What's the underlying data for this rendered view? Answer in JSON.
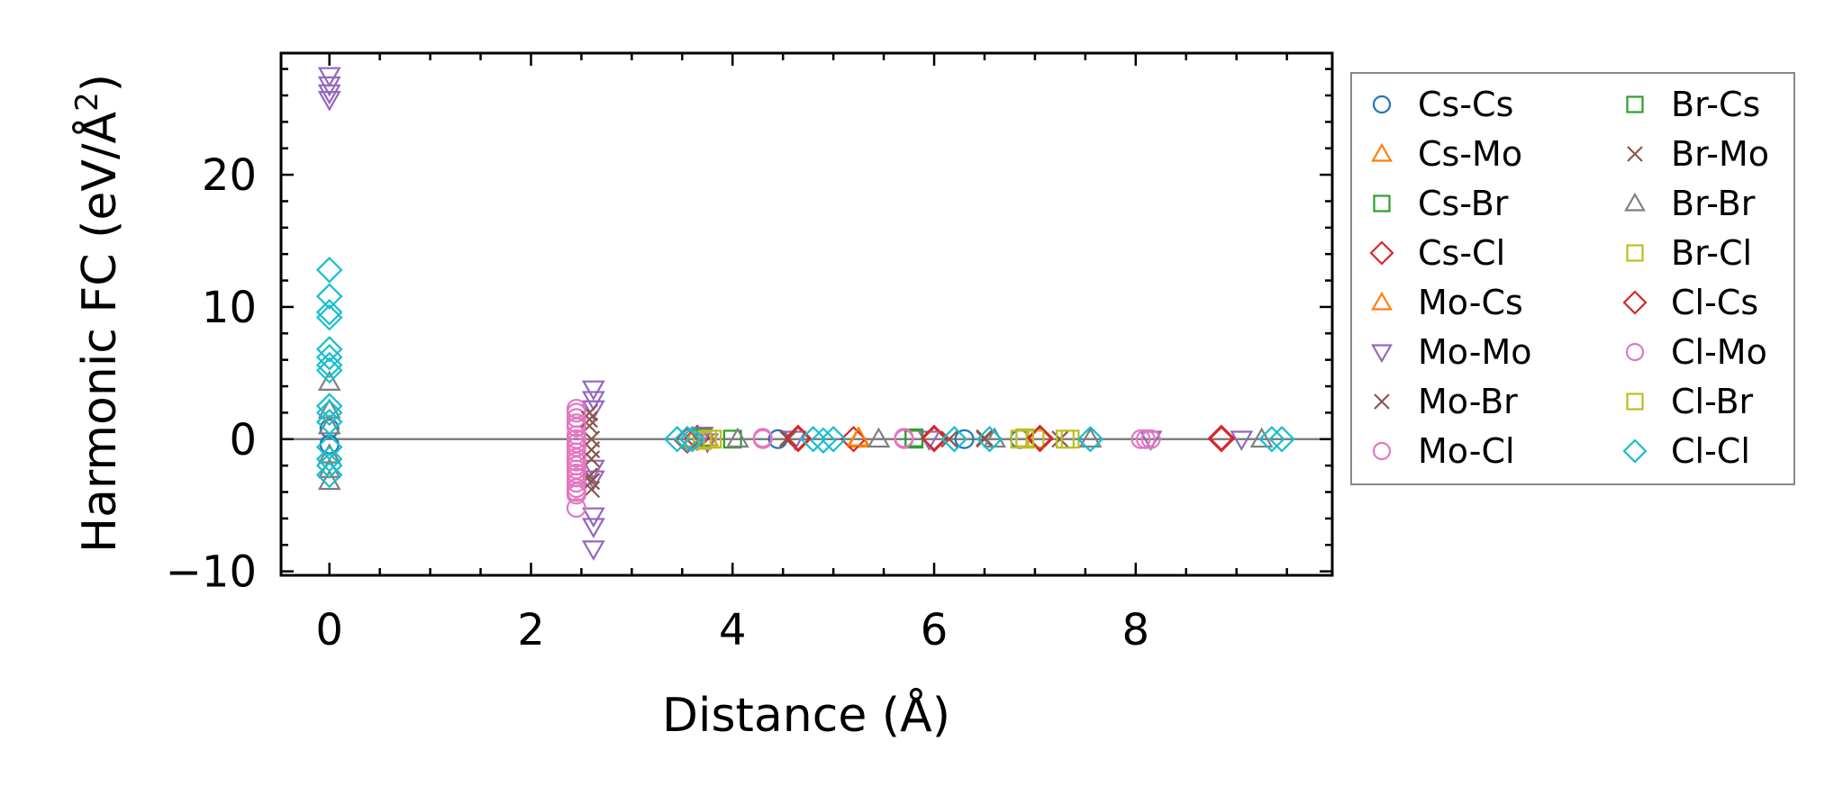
{
  "chart_data": {
    "type": "scatter",
    "title": "",
    "xlabel": "Distance (Å)",
    "ylabel": "Harmonic FC (eV/Å²)",
    "ylabel_parts": {
      "main": "Harmonic FC (eV/Å",
      "sup": "2",
      "close": ")"
    },
    "xlim": [
      -0.48,
      9.95
    ],
    "ylim": [
      -10.3,
      29.2
    ],
    "xticks": [
      0,
      2,
      4,
      6,
      8
    ],
    "xtick_labels": [
      "0",
      "2",
      "4",
      "6",
      "8"
    ],
    "yticks": [
      -10,
      0,
      10,
      20
    ],
    "ytick_labels": [
      "−10",
      "0",
      "10",
      "20"
    ],
    "reference_line": {
      "y": 0,
      "color": "#808080"
    },
    "legend": {
      "location": "outside-right",
      "columns": 2
    },
    "series": [
      {
        "name": "Cs-Cs",
        "marker": "circle",
        "color": "#1f77b4",
        "points": [
          [
            0,
            0.8
          ],
          [
            0,
            -0.4
          ],
          [
            4.45,
            0.0
          ],
          [
            6.3,
            0.0
          ],
          [
            6.85,
            0.0
          ]
        ]
      },
      {
        "name": "Cs-Mo",
        "marker": "triangle-up",
        "color": "#ff7f0e",
        "points": [
          [
            3.6,
            0.0
          ],
          [
            3.75,
            0.1
          ],
          [
            5.25,
            0.0
          ]
        ]
      },
      {
        "name": "Cs-Br",
        "marker": "square",
        "color": "#2ca02c",
        "points": [
          [
            3.7,
            0.0
          ],
          [
            4.0,
            0.0
          ],
          [
            5.8,
            0.0
          ]
        ]
      },
      {
        "name": "Cs-Cl",
        "marker": "diamond",
        "color": "#d62728",
        "points": [
          [
            3.55,
            0.0
          ],
          [
            3.65,
            0.1
          ],
          [
            4.65,
            0.0
          ],
          [
            5.2,
            0.0
          ],
          [
            6.0,
            0.0
          ],
          [
            7.05,
            0.0
          ],
          [
            8.85,
            0.0
          ]
        ]
      },
      {
        "name": "Mo-Cs",
        "marker": "triangle-up",
        "color": "#ff7f0e",
        "points": [
          [
            3.6,
            -0.1
          ],
          [
            5.25,
            0.1
          ]
        ]
      },
      {
        "name": "Mo-Mo",
        "marker": "triangle-down",
        "color": "#9467bd",
        "points": [
          [
            0,
            27.5
          ],
          [
            0,
            26.8
          ],
          [
            0,
            26.2
          ],
          [
            0,
            25.7
          ],
          [
            2.62,
            3.8
          ],
          [
            2.62,
            3.0
          ],
          [
            2.62,
            2.3
          ],
          [
            2.62,
            -2.2
          ],
          [
            2.62,
            -3.0
          ],
          [
            2.62,
            -5.8
          ],
          [
            2.62,
            -6.6
          ],
          [
            2.62,
            -8.3
          ],
          [
            3.7,
            0.3
          ],
          [
            3.75,
            -0.2
          ],
          [
            4.62,
            0.0
          ],
          [
            5.95,
            0.0
          ],
          [
            8.15,
            0.0
          ],
          [
            9.05,
            0.0
          ]
        ]
      },
      {
        "name": "Mo-Br",
        "marker": "x",
        "color": "#8c564b",
        "points": [
          [
            2.58,
            2.0
          ],
          [
            2.58,
            1.0
          ],
          [
            2.6,
            0.0
          ],
          [
            2.6,
            -1.5
          ],
          [
            2.58,
            -2.8
          ],
          [
            2.6,
            -3.8
          ],
          [
            4.55,
            0.0
          ],
          [
            6.5,
            0.0
          ]
        ]
      },
      {
        "name": "Mo-Cl",
        "marker": "circle",
        "color": "#e377c2",
        "points": [
          [
            2.45,
            2.3
          ],
          [
            2.45,
            1.6
          ],
          [
            2.45,
            0.9
          ],
          [
            2.45,
            0.3
          ],
          [
            2.45,
            -0.3
          ],
          [
            2.45,
            -1.0
          ],
          [
            2.45,
            -1.7
          ],
          [
            2.45,
            -2.3
          ],
          [
            2.45,
            -2.9
          ],
          [
            2.45,
            -3.7
          ],
          [
            2.45,
            -4.2
          ],
          [
            2.45,
            -5.2
          ],
          [
            4.3,
            0.0
          ],
          [
            5.7,
            0.0
          ],
          [
            8.05,
            0.0
          ],
          [
            8.15,
            0.0
          ]
        ]
      },
      {
        "name": "Br-Cs",
        "marker": "square",
        "color": "#2ca02c",
        "points": [
          [
            3.7,
            0.1
          ],
          [
            5.8,
            0.1
          ]
        ]
      },
      {
        "name": "Br-Mo",
        "marker": "x",
        "color": "#8c564b",
        "points": [
          [
            2.58,
            1.5
          ],
          [
            2.6,
            -0.8
          ],
          [
            2.6,
            -3.2
          ],
          [
            4.55,
            0.1
          ],
          [
            6.15,
            0.0
          ],
          [
            6.5,
            0.1
          ],
          [
            7.25,
            0.0
          ]
        ]
      },
      {
        "name": "Br-Br",
        "marker": "triangle-up",
        "color": "#7f7f7f",
        "points": [
          [
            0,
            4.3
          ],
          [
            0,
            2.2
          ],
          [
            0,
            1.0
          ],
          [
            0,
            -1.2
          ],
          [
            0,
            -2.3
          ],
          [
            0,
            -3.2
          ],
          [
            4.05,
            0.0
          ],
          [
            5.45,
            0.0
          ],
          [
            6.6,
            0.0
          ],
          [
            7.55,
            0.0
          ],
          [
            9.25,
            0.0
          ]
        ]
      },
      {
        "name": "Br-Cl",
        "marker": "square",
        "color": "#bcbd22",
        "points": [
          [
            3.7,
            -0.1
          ],
          [
            3.8,
            0.0
          ],
          [
            6.85,
            0.0
          ],
          [
            7.0,
            0.0
          ],
          [
            7.35,
            0.0
          ]
        ]
      },
      {
        "name": "Cl-Cs",
        "marker": "diamond",
        "color": "#d62728",
        "points": [
          [
            3.55,
            -0.1
          ],
          [
            4.65,
            0.1
          ],
          [
            6.0,
            0.1
          ],
          [
            7.05,
            0.1
          ],
          [
            8.85,
            0.1
          ]
        ]
      },
      {
        "name": "Cl-Mo",
        "marker": "circle",
        "color": "#e377c2",
        "points": [
          [
            2.45,
            2.0
          ],
          [
            2.45,
            1.2
          ],
          [
            2.45,
            0.0
          ],
          [
            2.45,
            -0.6
          ],
          [
            2.45,
            -1.4
          ],
          [
            2.45,
            -2.0
          ],
          [
            2.45,
            -2.6
          ],
          [
            2.45,
            -3.3
          ],
          [
            2.45,
            -4.0
          ],
          [
            4.3,
            0.1
          ],
          [
            5.7,
            0.1
          ],
          [
            8.1,
            0.0
          ]
        ]
      },
      {
        "name": "Cl-Br",
        "marker": "square",
        "color": "#bcbd22",
        "points": [
          [
            3.75,
            0.0
          ],
          [
            6.9,
            0.1
          ],
          [
            7.3,
            0.0
          ]
        ]
      },
      {
        "name": "Cl-Cl",
        "marker": "diamond",
        "color": "#17becf",
        "points": [
          [
            0,
            12.8
          ],
          [
            0,
            10.8
          ],
          [
            0,
            9.6
          ],
          [
            0,
            9.2
          ],
          [
            0,
            6.8
          ],
          [
            0,
            6.2
          ],
          [
            0,
            5.6
          ],
          [
            0,
            5.2
          ],
          [
            0,
            2.5
          ],
          [
            0,
            2.0
          ],
          [
            0,
            1.3
          ],
          [
            0,
            -0.6
          ],
          [
            0,
            -1.5
          ],
          [
            0,
            -2.0
          ],
          [
            0,
            -2.7
          ],
          [
            3.45,
            0.0
          ],
          [
            3.55,
            0.0
          ],
          [
            3.6,
            0.0
          ],
          [
            4.8,
            0.0
          ],
          [
            4.9,
            -0.1
          ],
          [
            5.0,
            0.0
          ],
          [
            6.2,
            0.0
          ],
          [
            6.55,
            0.0
          ],
          [
            7.55,
            0.0
          ],
          [
            9.35,
            0.0
          ],
          [
            9.45,
            0.0
          ]
        ]
      }
    ]
  }
}
